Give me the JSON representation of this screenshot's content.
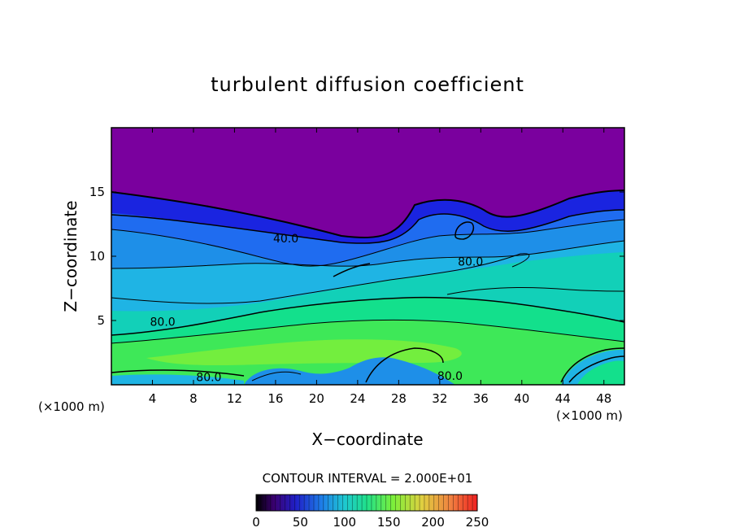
{
  "chart_data": {
    "type": "heatmap",
    "title": "turbulent diffusion coefficient",
    "xlabel": "X−coordinate",
    "ylabel": "Z−coordinate",
    "x_unit_left": "(×1000 m)",
    "x_unit_right": "(×1000 m)",
    "xlim": [
      0,
      50
    ],
    "ylim": [
      0,
      20
    ],
    "x_ticks": [
      4,
      8,
      12,
      16,
      20,
      24,
      28,
      32,
      36,
      40,
      44,
      48
    ],
    "y_ticks": [
      5,
      10,
      15
    ],
    "contour_interval_label": "CONTOUR INTERVAL = 2.000E+01",
    "contour_labels": [
      {
        "text": "40.0",
        "x": 17,
        "z": 11.2
      },
      {
        "text": "80.0",
        "x": 35,
        "z": 9.4
      },
      {
        "text": "80.0",
        "x": 5,
        "z": 4.7
      },
      {
        "text": "80.0",
        "x": 9.5,
        "z": 0.4
      },
      {
        "text": "80.0",
        "x": 33,
        "z": 0.5
      }
    ],
    "colorbar": {
      "min": 0,
      "max": 250,
      "ticks": [
        0,
        50,
        100,
        150,
        200,
        250
      ]
    },
    "bands": [
      {
        "value": 0,
        "z_center": 17.0
      },
      {
        "value": 20,
        "z_center": 13.9
      },
      {
        "value": 40,
        "z_center": 12.2
      },
      {
        "value": 60,
        "z_center": 10.5
      },
      {
        "value": 80,
        "z_center": 8.0
      },
      {
        "value": 100,
        "z_center": 5.5
      },
      {
        "value": 120,
        "z_center": 3.6
      },
      {
        "value": 140,
        "z_center": 2.2
      }
    ],
    "colors": {
      "v0": "#7a009e",
      "v20": "#1a24e0",
      "v40": "#1f6cf0",
      "v60": "#1e8fe8",
      "v80": "#1fb4e4",
      "v100": "#12d0b8",
      "v120": "#13e08c",
      "v140": "#3ee858",
      "v160": "#7cef3a"
    }
  }
}
